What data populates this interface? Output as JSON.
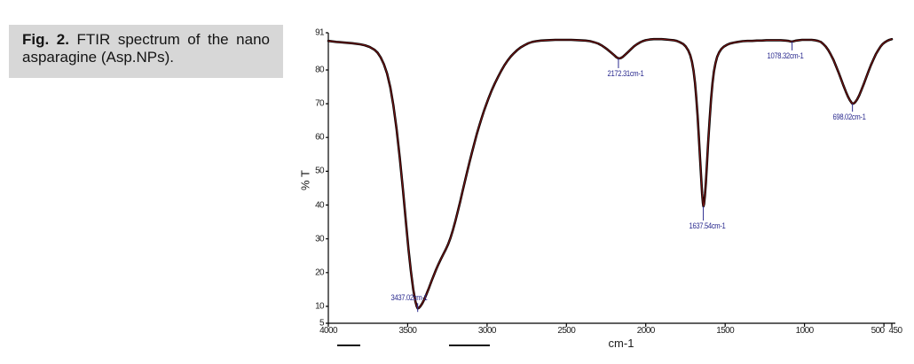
{
  "caption": {
    "label": "Fig. 2.",
    "text": " FTIR spectrum of the nano asparagine (Asp.NPs)."
  },
  "chart_data": {
    "type": "line",
    "title": "",
    "xlabel": "cm-1",
    "ylabel": "% T",
    "xlim": [
      4000,
      450
    ],
    "ylim": [
      5,
      91
    ],
    "x_axis_reversed": true,
    "grid": false,
    "legend": "none",
    "x_ticks": [
      4000,
      3500,
      3000,
      2500,
      2000,
      1500,
      1000,
      500,
      450
    ],
    "x_tick_label_dx": {
      "500": -7,
      "450": 4
    },
    "y_ticks": [
      91,
      80,
      70,
      60,
      50,
      40,
      30,
      20,
      10,
      5
    ],
    "axis_color": "#000000",
    "curve_color_outer": "#000000",
    "curve_color_inner": "#7a1414",
    "annotation_color": "#2b2b8f",
    "peak_annotations": [
      {
        "wavenumber": 3437.02,
        "transmittance": 9.4,
        "label": "3437.02cm-1",
        "side": "above",
        "dx": -10,
        "tick_len": 10
      },
      {
        "wavenumber": 2172.31,
        "transmittance": 83.4,
        "label": "2172.31cm-1",
        "side": "below",
        "dx": 8,
        "tick_len": 11
      },
      {
        "wavenumber": 1637.54,
        "transmittance": 39.6,
        "label": "1637.54cm-1",
        "side": "below",
        "dx": 4,
        "tick_len": 16
      },
      {
        "wavenumber": 1078.32,
        "transmittance": 88.4,
        "label": "1078.32cm-1",
        "side": "below",
        "dx": -8,
        "tick_len": 10
      },
      {
        "wavenumber": 698.02,
        "transmittance": 70.0,
        "label": "698.02cm-1",
        "side": "below",
        "dx": -4,
        "tick_len": 9
      }
    ],
    "series": [
      {
        "name": "transmittance",
        "points": [
          [
            4000,
            88.6
          ],
          [
            3950,
            88.3
          ],
          [
            3900,
            88.1
          ],
          [
            3850,
            87.9
          ],
          [
            3800,
            87.6
          ],
          [
            3770,
            87.3
          ],
          [
            3740,
            86.8
          ],
          [
            3710,
            86.0
          ],
          [
            3690,
            85.1
          ],
          [
            3670,
            83.7
          ],
          [
            3650,
            81.7
          ],
          [
            3630,
            78.9
          ],
          [
            3610,
            74.9
          ],
          [
            3590,
            69.5
          ],
          [
            3570,
            62.5
          ],
          [
            3550,
            54.0
          ],
          [
            3530,
            44.5
          ],
          [
            3510,
            34.5
          ],
          [
            3495,
            27.0
          ],
          [
            3480,
            20.5
          ],
          [
            3465,
            15.0
          ],
          [
            3452,
            11.6
          ],
          [
            3443,
            10.0
          ],
          [
            3437,
            9.4
          ],
          [
            3430,
            9.5
          ],
          [
            3420,
            10.0
          ],
          [
            3408,
            10.9
          ],
          [
            3394,
            12.2
          ],
          [
            3380,
            13.8
          ],
          [
            3365,
            15.6
          ],
          [
            3350,
            17.5
          ],
          [
            3335,
            19.3
          ],
          [
            3320,
            21.0
          ],
          [
            3305,
            22.6
          ],
          [
            3290,
            24.1
          ],
          [
            3275,
            25.5
          ],
          [
            3260,
            26.9
          ],
          [
            3245,
            28.4
          ],
          [
            3230,
            30.3
          ],
          [
            3215,
            32.6
          ],
          [
            3200,
            35.2
          ],
          [
            3185,
            38.0
          ],
          [
            3170,
            40.9
          ],
          [
            3155,
            43.9
          ],
          [
            3140,
            46.9
          ],
          [
            3125,
            49.9
          ],
          [
            3110,
            52.8
          ],
          [
            3095,
            55.6
          ],
          [
            3080,
            58.3
          ],
          [
            3065,
            60.9
          ],
          [
            3050,
            63.3
          ],
          [
            3035,
            65.6
          ],
          [
            3020,
            67.8
          ],
          [
            3005,
            69.8
          ],
          [
            2990,
            71.7
          ],
          [
            2970,
            74.0
          ],
          [
            2950,
            76.1
          ],
          [
            2930,
            78.0
          ],
          [
            2910,
            79.8
          ],
          [
            2890,
            81.4
          ],
          [
            2870,
            82.8
          ],
          [
            2850,
            84.0
          ],
          [
            2830,
            85.0
          ],
          [
            2810,
            85.9
          ],
          [
            2790,
            86.6
          ],
          [
            2765,
            87.3
          ],
          [
            2740,
            87.9
          ],
          [
            2715,
            88.3
          ],
          [
            2690,
            88.5
          ],
          [
            2660,
            88.7
          ],
          [
            2620,
            88.8
          ],
          [
            2570,
            88.9
          ],
          [
            2520,
            88.9
          ],
          [
            2470,
            88.9
          ],
          [
            2420,
            88.8
          ],
          [
            2380,
            88.7
          ],
          [
            2350,
            88.5
          ],
          [
            2325,
            88.2
          ],
          [
            2300,
            87.8
          ],
          [
            2280,
            87.3
          ],
          [
            2260,
            86.7
          ],
          [
            2240,
            86.0
          ],
          [
            2220,
            85.2
          ],
          [
            2200,
            84.4
          ],
          [
            2186,
            83.8
          ],
          [
            2172,
            83.4
          ],
          [
            2158,
            83.5
          ],
          [
            2144,
            83.9
          ],
          [
            2128,
            84.6
          ],
          [
            2110,
            85.4
          ],
          [
            2092,
            86.2
          ],
          [
            2074,
            87.0
          ],
          [
            2056,
            87.6
          ],
          [
            2038,
            88.1
          ],
          [
            2020,
            88.5
          ],
          [
            2000,
            88.8
          ],
          [
            1975,
            89.0
          ],
          [
            1950,
            89.1
          ],
          [
            1925,
            89.1
          ],
          [
            1900,
            89.1
          ],
          [
            1875,
            89.0
          ],
          [
            1850,
            88.9
          ],
          [
            1825,
            88.8
          ],
          [
            1805,
            88.6
          ],
          [
            1785,
            88.2
          ],
          [
            1765,
            87.7
          ],
          [
            1748,
            86.9
          ],
          [
            1733,
            85.8
          ],
          [
            1720,
            84.4
          ],
          [
            1709,
            82.4
          ],
          [
            1699,
            79.7
          ],
          [
            1690,
            76.2
          ],
          [
            1682,
            71.9
          ],
          [
            1674,
            66.5
          ],
          [
            1666,
            60.3
          ],
          [
            1658,
            53.8
          ],
          [
            1651,
            47.9
          ],
          [
            1645,
            43.4
          ],
          [
            1640,
            40.6
          ],
          [
            1637,
            39.6
          ],
          [
            1633,
            40.3
          ],
          [
            1628,
            42.6
          ],
          [
            1622,
            46.4
          ],
          [
            1615,
            51.8
          ],
          [
            1607,
            58.4
          ],
          [
            1598,
            65.3
          ],
          [
            1589,
            71.3
          ],
          [
            1580,
            76.0
          ],
          [
            1571,
            79.5
          ],
          [
            1561,
            82.0
          ],
          [
            1550,
            83.9
          ],
          [
            1538,
            85.2
          ],
          [
            1524,
            86.2
          ],
          [
            1508,
            86.9
          ],
          [
            1490,
            87.4
          ],
          [
            1470,
            87.8
          ],
          [
            1445,
            88.1
          ],
          [
            1420,
            88.3
          ],
          [
            1390,
            88.5
          ],
          [
            1360,
            88.6
          ],
          [
            1330,
            88.6
          ],
          [
            1300,
            88.7
          ],
          [
            1270,
            88.7
          ],
          [
            1240,
            88.8
          ],
          [
            1210,
            88.8
          ],
          [
            1180,
            88.8
          ],
          [
            1150,
            88.8
          ],
          [
            1120,
            88.7
          ],
          [
            1100,
            88.6
          ],
          [
            1085,
            88.4
          ],
          [
            1078,
            88.4
          ],
          [
            1068,
            88.5
          ],
          [
            1052,
            88.7
          ],
          [
            1035,
            88.8
          ],
          [
            1015,
            88.9
          ],
          [
            995,
            88.9
          ],
          [
            975,
            88.9
          ],
          [
            955,
            88.9
          ],
          [
            935,
            88.8
          ],
          [
            915,
            88.6
          ],
          [
            898,
            88.3
          ],
          [
            882,
            87.7
          ],
          [
            866,
            86.9
          ],
          [
            850,
            85.8
          ],
          [
            834,
            84.5
          ],
          [
            818,
            83.0
          ],
          [
            802,
            81.2
          ],
          [
            786,
            79.3
          ],
          [
            770,
            77.3
          ],
          [
            754,
            75.3
          ],
          [
            739,
            73.5
          ],
          [
            726,
            72.1
          ],
          [
            714,
            71.0
          ],
          [
            704,
            70.3
          ],
          [
            698,
            70.0
          ],
          [
            690,
            70.1
          ],
          [
            680,
            70.5
          ],
          [
            668,
            71.3
          ],
          [
            655,
            72.5
          ],
          [
            641,
            74.1
          ],
          [
            626,
            75.9
          ],
          [
            611,
            77.8
          ],
          [
            596,
            79.7
          ],
          [
            581,
            81.5
          ],
          [
            566,
            83.1
          ],
          [
            551,
            84.6
          ],
          [
            536,
            85.8
          ],
          [
            521,
            86.9
          ],
          [
            507,
            87.7
          ],
          [
            494,
            88.2
          ],
          [
            480,
            88.6
          ],
          [
            465,
            88.9
          ],
          [
            450,
            89.1
          ]
        ]
      }
    ]
  }
}
